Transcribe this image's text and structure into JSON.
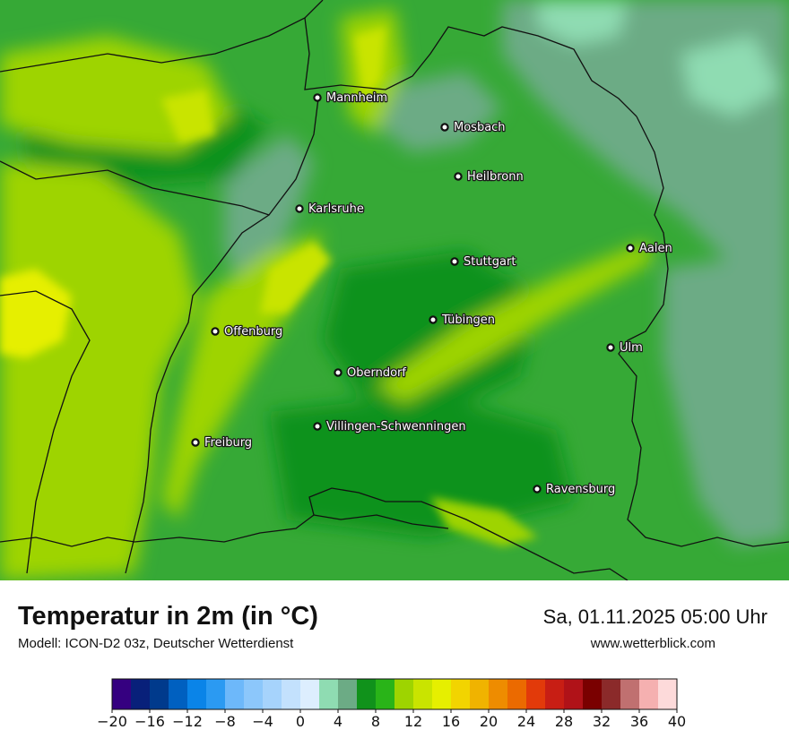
{
  "map": {
    "cities": [
      {
        "name": "Mannheim"
      },
      {
        "name": "Mosbach"
      },
      {
        "name": "Heilbronn"
      },
      {
        "name": "Karlsruhe"
      },
      {
        "name": "Aalen"
      },
      {
        "name": "Stuttgart"
      },
      {
        "name": "Tübingen"
      },
      {
        "name": "Offenburg"
      },
      {
        "name": "Ulm"
      },
      {
        "name": "Oberndorf"
      },
      {
        "name": "Villingen-Schwenningen"
      },
      {
        "name": "Freiburg"
      },
      {
        "name": "Ravensburg"
      }
    ],
    "colors": {
      "base_green": "#36a936",
      "dark_green": "#10921b",
      "light_green": "#9ed400",
      "yellow": "#e6ef00",
      "cool_green": "#6cab85",
      "mint": "#8fdcb2"
    }
  },
  "footer": {
    "title": "Temperatur in 2m (in °C)",
    "subtitle": "Modell: ICON-D2 03z, Deutscher Wetterdienst",
    "datetime": "Sa, 01.11.2025 05:00 Uhr",
    "website": "www.wetterblick.com"
  },
  "legend": {
    "ticks": [
      "−20",
      "−16",
      "−12",
      "−8",
      "−4",
      "0",
      "4",
      "8",
      "12",
      "16",
      "20",
      "24",
      "28",
      "32",
      "36",
      "40"
    ],
    "colors": [
      "#350080",
      "#08207a",
      "#003a8c",
      "#0060c0",
      "#0a84e8",
      "#2b9af2",
      "#6db8fa",
      "#8cc7fb",
      "#a6d3fc",
      "#c3e1fd",
      "#ddeefe",
      "#8fdcb2",
      "#6cab85",
      "#10921b",
      "#29b418",
      "#9ed400",
      "#c9e400",
      "#e6ef00",
      "#f2d400",
      "#f0b300",
      "#ee8c00",
      "#eb6a00",
      "#e23a0a",
      "#c81e14",
      "#b01218",
      "#7a0000",
      "#8b2a2a",
      "#c07070",
      "#f5b0b0",
      "#fddada"
    ]
  }
}
